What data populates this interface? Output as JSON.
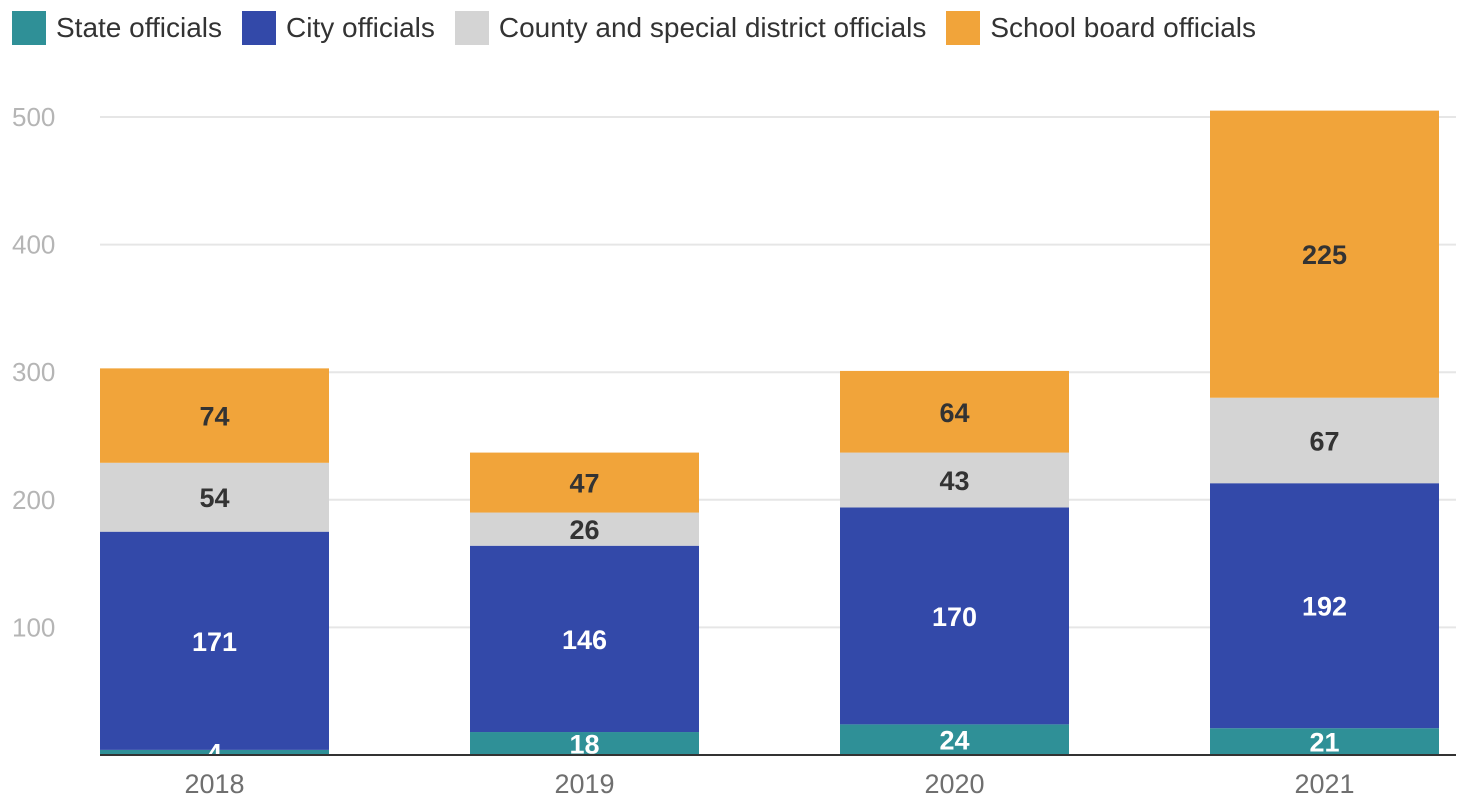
{
  "chart_data": {
    "type": "bar",
    "stacked": true,
    "categories": [
      "2018",
      "2019",
      "2020",
      "2021"
    ],
    "series": [
      {
        "name": "State officials",
        "color": "#2f9097",
        "label_color": "#ffffff",
        "values": [
          4,
          18,
          24,
          21
        ]
      },
      {
        "name": "City officials",
        "color": "#3349a9",
        "label_color": "#ffffff",
        "values": [
          171,
          146,
          170,
          192
        ]
      },
      {
        "name": "County and special district officials",
        "color": "#d4d4d4",
        "label_color": "#333333",
        "values": [
          54,
          26,
          43,
          67
        ]
      },
      {
        "name": "School board officials",
        "color": "#f1a43a",
        "label_color": "#333333",
        "values": [
          74,
          47,
          64,
          225
        ]
      }
    ],
    "ylim": [
      0,
      500
    ],
    "yticks": [
      "100",
      "200",
      "300",
      "400",
      "500"
    ],
    "grid": true,
    "legend_position": "top-left",
    "title": "",
    "xlabel": "",
    "ylabel": ""
  }
}
